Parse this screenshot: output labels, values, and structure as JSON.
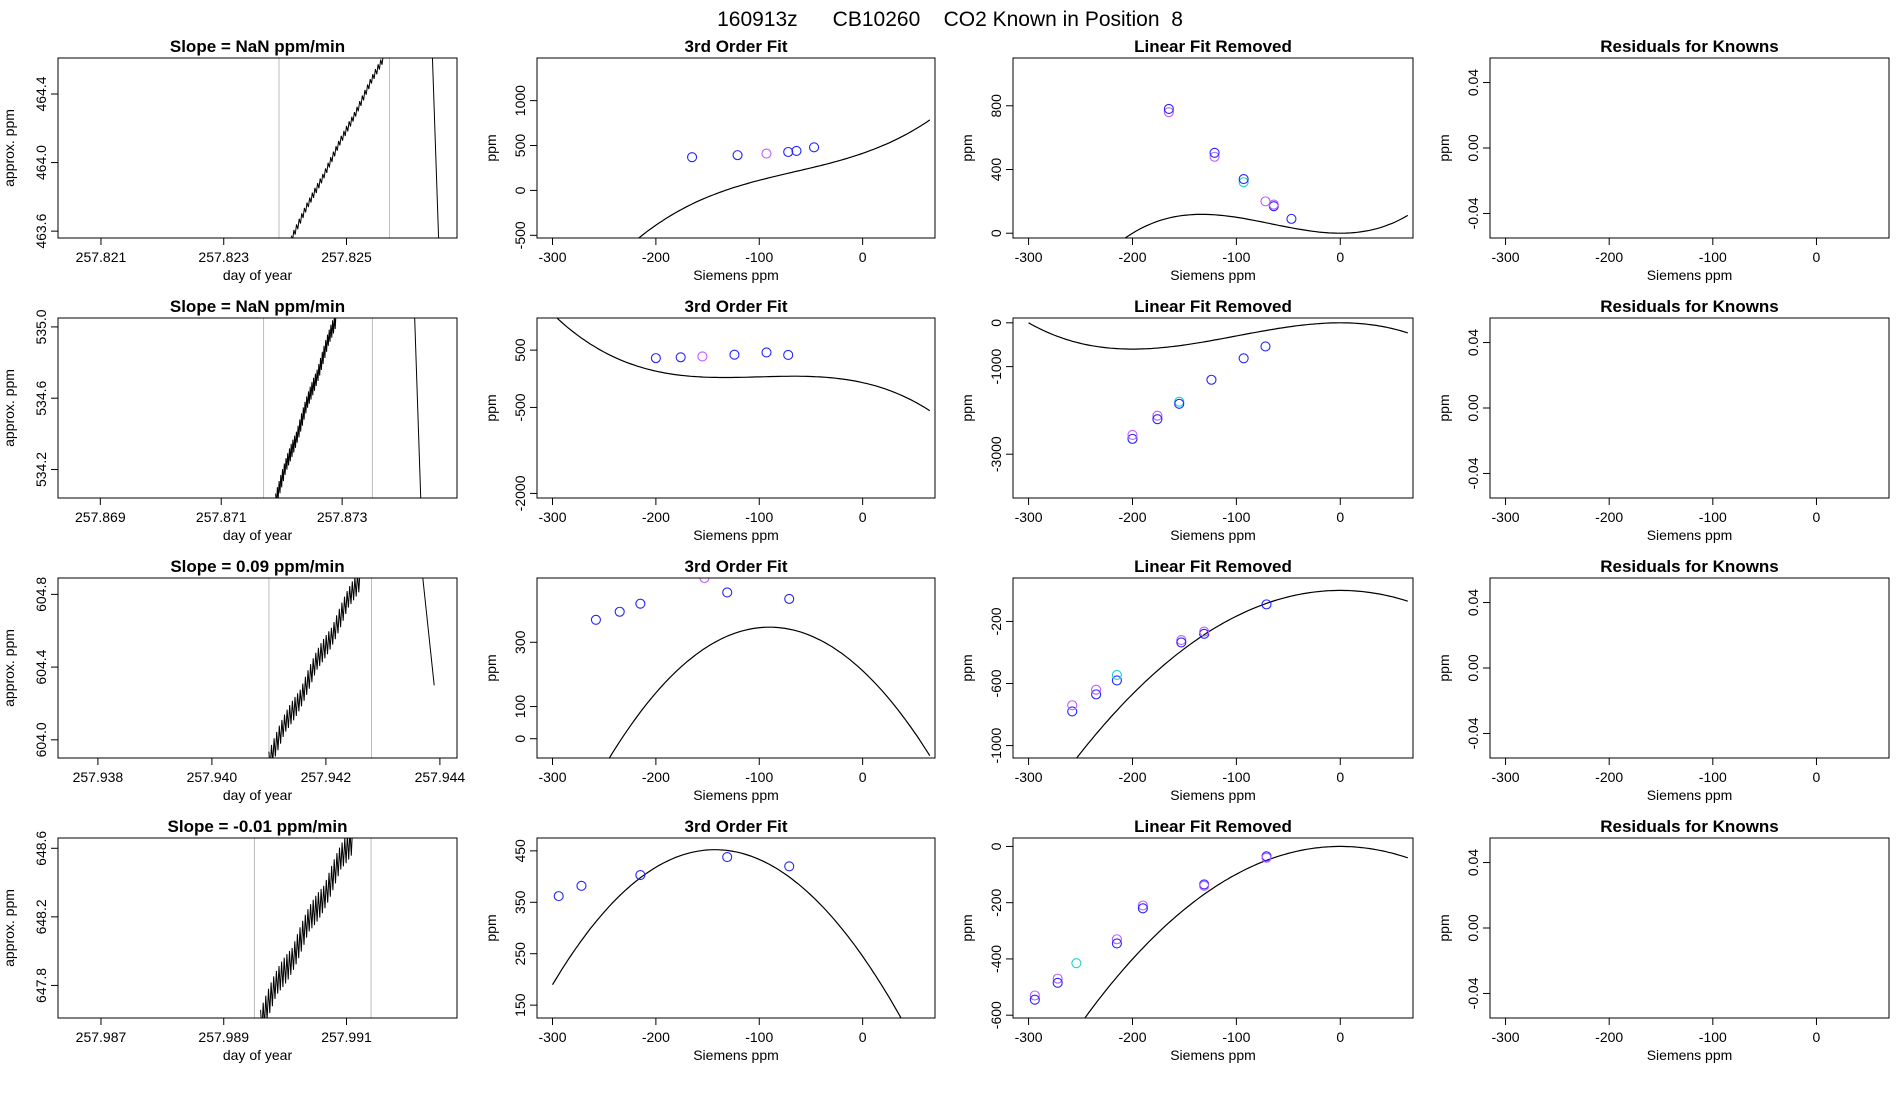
{
  "page": {
    "title": "160913z      CB10260    CO2 Known in Position  8"
  },
  "labels": {
    "day_of_year": "day of year",
    "approx_ppm": "approx. ppm",
    "siemens_ppm": "Siemens ppm",
    "ppm": "ppm"
  },
  "colors": {
    "axis": "#000000",
    "curve": "#000000",
    "point_blue": "#2323ff",
    "point_violet": "#c05cff",
    "point_cyan": "#1fd1d1",
    "vline": "#bdbdbd"
  },
  "chart_data": [
    {
      "row": 1,
      "type": "line",
      "title": "Slope =  NaN  ppm/min",
      "xlabel": "day of year",
      "ylabel": "approx. ppm",
      "xlim": [
        257.8203,
        257.8268
      ],
      "ylim": [
        463.56,
        464.61
      ],
      "xticks": [
        "257.821",
        "257.823",
        "257.825"
      ],
      "xtick_values": [
        257.821,
        257.823,
        257.825
      ],
      "yticks": [
        "463.6",
        "464.0",
        "464.4"
      ],
      "ytick_values": [
        463.6,
        464.0,
        464.4
      ],
      "vlines": [
        257.8239,
        257.8257
      ],
      "trace": {
        "x0": 257.8241,
        "x1": 257.8256,
        "y0": 463.56,
        "y1": 464.61,
        "jitter": 0.025
      },
      "drop": {
        "x0": 257.8264,
        "x1": 257.8265,
        "y0": 464.61,
        "y1": 463.56
      }
    },
    {
      "row": 1,
      "type": "scatter",
      "title": "3rd Order Fit",
      "xlabel": "Siemens ppm",
      "ylabel": "ppm",
      "xlim": [
        -315,
        70
      ],
      "ylim": [
        -530,
        1475
      ],
      "xticks": [
        "-300",
        "-200",
        "-100",
        "0"
      ],
      "xtick_values": [
        -300,
        -200,
        -100,
        0
      ],
      "yticks": [
        "-500",
        "0",
        "500",
        "1000"
      ],
      "ytick_values": [
        -500,
        0,
        500,
        1000
      ],
      "curve": {
        "kind": "cubic",
        "coef": [
          413.1,
          4.0,
          0.02,
          0.0001
        ],
        "x0": -300,
        "x1": 65
      },
      "points": [
        {
          "x": -165,
          "y": 370,
          "c": "point_blue"
        },
        {
          "x": -121,
          "y": 393,
          "c": "point_blue"
        },
        {
          "x": -93,
          "y": 410,
          "c": "point_violet"
        },
        {
          "x": -72,
          "y": 428,
          "c": "point_blue"
        },
        {
          "x": -64,
          "y": 440,
          "c": "point_blue"
        },
        {
          "x": -47,
          "y": 480,
          "c": "point_blue"
        }
      ]
    },
    {
      "row": 1,
      "type": "scatter",
      "title": "Linear Fit Removed",
      "xlabel": "Siemens ppm",
      "ylabel": "ppm",
      "xlim": [
        -315,
        70
      ],
      "ylim": [
        -30,
        1100
      ],
      "xticks": [
        "-300",
        "-200",
        "-100",
        "0"
      ],
      "xtick_values": [
        -300,
        -200,
        -100,
        0
      ],
      "yticks": [
        "0",
        "400",
        "800"
      ],
      "ytick_values": [
        0,
        400,
        800
      ],
      "curve": {
        "kind": "cubic",
        "coef": [
          0,
          0,
          0.02,
          0.0001
        ],
        "x0": -300,
        "x1": 65
      },
      "points": [
        {
          "x": -165,
          "y": 760,
          "c": "point_violet"
        },
        {
          "x": -165,
          "y": 780,
          "c": "point_blue"
        },
        {
          "x": -121,
          "y": 480,
          "c": "point_violet"
        },
        {
          "x": -121,
          "y": 505,
          "c": "point_blue"
        },
        {
          "x": -93,
          "y": 320,
          "c": "point_cyan"
        },
        {
          "x": -93,
          "y": 340,
          "c": "point_blue"
        },
        {
          "x": -72,
          "y": 200,
          "c": "point_violet"
        },
        {
          "x": -64,
          "y": 170,
          "c": "point_blue"
        },
        {
          "x": -64,
          "y": 180,
          "c": "point_violet"
        },
        {
          "x": -47,
          "y": 90,
          "c": "point_blue"
        }
      ]
    },
    {
      "row": 1,
      "type": "scatter",
      "title": "Residuals for Knowns",
      "xlabel": "Siemens ppm",
      "ylabel": "ppm",
      "xlim": [
        -315,
        70
      ],
      "ylim": [
        -0.055,
        0.055
      ],
      "xticks": [
        "-300",
        "-200",
        "-100",
        "0"
      ],
      "xtick_values": [
        -300,
        -200,
        -100,
        0
      ],
      "yticks": [
        "-0.04",
        "0.00",
        "0.04"
      ],
      "ytick_values": [
        -0.04,
        0.0,
        0.04
      ],
      "points": []
    },
    {
      "row": 2,
      "type": "line",
      "title": "Slope =  NaN  ppm/min",
      "xlabel": "day of year",
      "ylabel": "approx. ppm",
      "xlim": [
        257.8683,
        257.8749
      ],
      "ylim": [
        534.04,
        535.05
      ],
      "xticks": [
        "257.869",
        "257.871",
        "257.873"
      ],
      "xtick_values": [
        257.869,
        257.871,
        257.873
      ],
      "yticks": [
        "534.2",
        "534.6",
        "535.0"
      ],
      "ytick_values": [
        534.2,
        534.6,
        535.0
      ],
      "vlines": [
        257.8717,
        257.8735
      ],
      "trace": {
        "x0": 257.8719,
        "x1": 257.8729,
        "y0": 534.04,
        "y1": 535.05,
        "jitter": 0.05
      },
      "drop": {
        "x0": 257.8742,
        "x1": 257.8743,
        "y0": 535.05,
        "y1": 534.04
      }
    },
    {
      "row": 2,
      "type": "scatter",
      "title": "3rd Order Fit",
      "xlabel": "Siemens ppm",
      "ylabel": "ppm",
      "xlim": [
        -315,
        70
      ],
      "ylim": [
        -2080,
        1060
      ],
      "xticks": [
        "-300",
        "-200",
        "-100",
        "0"
      ],
      "xtick_values": [
        -300,
        -200,
        -100,
        0
      ],
      "yticks": [
        "-2000",
        "-500",
        "500"
      ],
      "ytick_values": [
        -2000,
        -500,
        500
      ],
      "curve": {
        "kind": "cubic",
        "coef": [
          -67,
          -4.0,
          -0.045,
          -0.00015
        ],
        "x0": -300,
        "x1": 65
      },
      "points": [
        {
          "x": -200,
          "y": 360,
          "c": "point_blue"
        },
        {
          "x": -176,
          "y": 375,
          "c": "point_blue"
        },
        {
          "x": -155,
          "y": 390,
          "c": "point_violet"
        },
        {
          "x": -124,
          "y": 420,
          "c": "point_blue"
        },
        {
          "x": -93,
          "y": 460,
          "c": "point_blue"
        },
        {
          "x": -72,
          "y": 415,
          "c": "point_blue"
        }
      ]
    },
    {
      "row": 2,
      "type": "scatter",
      "title": "Linear Fit Removed",
      "xlabel": "Siemens ppm",
      "ylabel": "ppm",
      "xlim": [
        -315,
        70
      ],
      "ylim": [
        -4000,
        110
      ],
      "xticks": [
        "-300",
        "-200",
        "-100",
        "0"
      ],
      "xtick_values": [
        -300,
        -200,
        -100,
        0
      ],
      "yticks": [
        "-3000",
        "-1000",
        "0"
      ],
      "ytick_values": [
        -3000,
        -1000,
        0
      ],
      "curve": {
        "kind": "cubic",
        "coef": [
          0,
          0,
          -0.045,
          -0.00015
        ],
        "x0": -300,
        "x1": 65
      },
      "points": [
        {
          "x": -200,
          "y": -2650,
          "c": "point_blue"
        },
        {
          "x": -200,
          "y": -2560,
          "c": "point_violet"
        },
        {
          "x": -176,
          "y": -2120,
          "c": "point_violet"
        },
        {
          "x": -176,
          "y": -2200,
          "c": "point_blue"
        },
        {
          "x": -155,
          "y": -1800,
          "c": "point_cyan"
        },
        {
          "x": -155,
          "y": -1850,
          "c": "point_blue"
        },
        {
          "x": -124,
          "y": -1300,
          "c": "point_blue"
        },
        {
          "x": -93,
          "y": -810,
          "c": "point_blue"
        },
        {
          "x": -72,
          "y": -540,
          "c": "point_blue"
        }
      ]
    },
    {
      "row": 2,
      "type": "scatter",
      "title": "Residuals for Knowns",
      "xlabel": "Siemens ppm",
      "ylabel": "ppm",
      "xlim": [
        -315,
        70
      ],
      "ylim": [
        -0.055,
        0.055
      ],
      "xticks": [
        "-300",
        "-200",
        "-100",
        "0"
      ],
      "xtick_values": [
        -300,
        -200,
        -100,
        0
      ],
      "yticks": [
        "-0.04",
        "0.00",
        "0.04"
      ],
      "ytick_values": [
        -0.04,
        0.0,
        0.04
      ],
      "points": []
    },
    {
      "row": 3,
      "type": "line",
      "title": "Slope =  0.09  ppm/min",
      "xlabel": "day of year",
      "ylabel": "approx. ppm",
      "xlim": [
        257.9373,
        257.9443
      ],
      "ylim": [
        603.9,
        604.89
      ],
      "xticks": [
        "257.938",
        "257.940",
        "257.942",
        "257.944"
      ],
      "xtick_values": [
        257.938,
        257.94,
        257.942,
        257.944
      ],
      "yticks": [
        "604.0",
        "604.4",
        "604.8"
      ],
      "ytick_values": [
        604.0,
        604.4,
        604.8
      ],
      "vlines": [
        257.941,
        257.9428
      ],
      "trace": {
        "x0": 257.941,
        "x1": 257.9426,
        "y0": 603.9,
        "y1": 604.89,
        "jitter": 0.07
      },
      "drop": {
        "x0": 257.9437,
        "x1": 257.9439,
        "y0": 604.89,
        "y1": 604.3
      }
    },
    {
      "row": 3,
      "type": "scatter",
      "title": "3rd Order Fit",
      "xlabel": "Siemens ppm",
      "ylabel": "ppm",
      "xlim": [
        -315,
        70
      ],
      "ylim": [
        -60,
        500
      ],
      "xticks": [
        "-300",
        "-200",
        "-100",
        "0"
      ],
      "xtick_values": [
        -300,
        -200,
        -100,
        0
      ],
      "yticks": [
        "0",
        "100",
        "300"
      ],
      "ytick_values": [
        0,
        100,
        300
      ],
      "curve": {
        "kind": "cubic",
        "coef": [
          211.5,
          -3.0,
          -0.0165,
          1.1e-06
        ],
        "x0": -300,
        "x1": 65
      },
      "points": [
        {
          "x": -258,
          "y": 370,
          "c": "point_blue"
        },
        {
          "x": -235,
          "y": 395,
          "c": "point_blue"
        },
        {
          "x": -215,
          "y": 420,
          "c": "point_blue"
        },
        {
          "x": -153,
          "y": 500,
          "c": "point_violet"
        },
        {
          "x": -131,
          "y": 455,
          "c": "point_blue"
        },
        {
          "x": -71,
          "y": 435,
          "c": "point_blue"
        }
      ]
    },
    {
      "row": 3,
      "type": "scatter",
      "title": "Linear Fit Removed",
      "xlabel": "Siemens ppm",
      "ylabel": "ppm",
      "xlim": [
        -315,
        70
      ],
      "ylim": [
        -1080,
        80
      ],
      "xticks": [
        "-300",
        "-200",
        "-100",
        "0"
      ],
      "xtick_values": [
        -300,
        -200,
        -100,
        0
      ],
      "yticks": [
        "-1000",
        "-600",
        "-200"
      ],
      "ytick_values": [
        -1000,
        -600,
        -200
      ],
      "curve": {
        "kind": "cubic",
        "coef": [
          0,
          0,
          -0.0165,
          1.1e-06
        ],
        "x0": -300,
        "x1": 65
      },
      "points": [
        {
          "x": -258,
          "y": -780,
          "c": "point_blue"
        },
        {
          "x": -258,
          "y": -740,
          "c": "point_violet"
        },
        {
          "x": -235,
          "y": -670,
          "c": "point_blue"
        },
        {
          "x": -235,
          "y": -640,
          "c": "point_violet"
        },
        {
          "x": -215,
          "y": -580,
          "c": "point_blue"
        },
        {
          "x": -215,
          "y": -545,
          "c": "point_cyan"
        },
        {
          "x": -153,
          "y": -320,
          "c": "point_violet"
        },
        {
          "x": -153,
          "y": -335,
          "c": "point_blue"
        },
        {
          "x": -131,
          "y": -280,
          "c": "point_blue"
        },
        {
          "x": -131,
          "y": -265,
          "c": "point_violet"
        },
        {
          "x": -71,
          "y": -90,
          "c": "point_blue"
        }
      ]
    },
    {
      "row": 3,
      "type": "scatter",
      "title": "Residuals for Knowns",
      "xlabel": "Siemens ppm",
      "ylabel": "ppm",
      "xlim": [
        -315,
        70
      ],
      "ylim": [
        -0.055,
        0.055
      ],
      "xticks": [
        "-300",
        "-200",
        "-100",
        "0"
      ],
      "xtick_values": [
        -300,
        -200,
        -100,
        0
      ],
      "yticks": [
        "-0.04",
        "0.00",
        "0.04"
      ],
      "ytick_values": [
        -0.04,
        0.0,
        0.04
      ],
      "points": []
    },
    {
      "row": 4,
      "type": "line",
      "title": "Slope =  -0.01  ppm/min",
      "xlabel": "day of year",
      "ylabel": "approx. ppm",
      "xlim": [
        257.9863,
        257.9928
      ],
      "ylim": [
        647.61,
        648.66
      ],
      "xticks": [
        "257.987",
        "257.989",
        "257.991"
      ],
      "xtick_values": [
        257.987,
        257.989,
        257.991
      ],
      "yticks": [
        "647.8",
        "648.2",
        "648.6"
      ],
      "ytick_values": [
        647.8,
        648.2,
        648.6
      ],
      "vlines": [
        257.9895,
        257.9914
      ],
      "trace": {
        "x0": 257.9896,
        "x1": 257.9911,
        "y0": 647.61,
        "y1": 648.66,
        "jitter": 0.09
      }
    },
    {
      "row": 4,
      "type": "scatter",
      "title": "3rd Order Fit",
      "xlabel": "Siemens ppm",
      "ylabel": "ppm",
      "xlim": [
        -315,
        70
      ],
      "ylim": [
        125,
        475
      ],
      "xticks": [
        "-300",
        "-200",
        "-100",
        "0"
      ],
      "xtick_values": [
        -300,
        -200,
        -100,
        0
      ],
      "yticks": [
        "150",
        "250",
        "350",
        "450"
      ],
      "ytick_values": [
        150,
        250,
        350,
        450
      ],
      "curve": {
        "kind": "cubic",
        "coef": [
          244.9,
          -2.87,
          -0.0097,
          1.6e-06
        ],
        "x0": -300,
        "x1": 65
      },
      "points": [
        {
          "x": -294,
          "y": 362,
          "c": "point_blue"
        },
        {
          "x": -272,
          "y": 382,
          "c": "point_blue"
        },
        {
          "x": -215,
          "y": 403,
          "c": "point_blue"
        },
        {
          "x": -131,
          "y": 438,
          "c": "point_blue"
        },
        {
          "x": -71,
          "y": 420,
          "c": "point_blue"
        }
      ]
    },
    {
      "row": 4,
      "type": "scatter",
      "title": "Linear Fit Removed",
      "xlabel": "Siemens ppm",
      "ylabel": "ppm",
      "xlim": [
        -315,
        70
      ],
      "ylim": [
        -610,
        30
      ],
      "xticks": [
        "-300",
        "-200",
        "-100",
        "0"
      ],
      "xtick_values": [
        -300,
        -200,
        -100,
        0
      ],
      "yticks": [
        "-600",
        "-400",
        "-200",
        "0"
      ],
      "ytick_values": [
        -600,
        -400,
        -200,
        0
      ],
      "curve": {
        "kind": "cubic",
        "coef": [
          0,
          0,
          -0.0097,
          1.6e-06
        ],
        "x0": -300,
        "x1": 65
      },
      "points": [
        {
          "x": -294,
          "y": -530,
          "c": "point_violet"
        },
        {
          "x": -294,
          "y": -545,
          "c": "point_blue"
        },
        {
          "x": -272,
          "y": -470,
          "c": "point_violet"
        },
        {
          "x": -272,
          "y": -485,
          "c": "point_blue"
        },
        {
          "x": -254,
          "y": -415,
          "c": "point_cyan"
        },
        {
          "x": -215,
          "y": -330,
          "c": "point_violet"
        },
        {
          "x": -215,
          "y": -345,
          "c": "point_blue"
        },
        {
          "x": -190,
          "y": -210,
          "c": "point_violet"
        },
        {
          "x": -190,
          "y": -220,
          "c": "point_blue"
        },
        {
          "x": -131,
          "y": -135,
          "c": "point_blue"
        },
        {
          "x": -131,
          "y": -140,
          "c": "point_violet"
        },
        {
          "x": -71,
          "y": -35,
          "c": "point_blue"
        },
        {
          "x": -71,
          "y": -40,
          "c": "point_violet"
        }
      ]
    },
    {
      "row": 4,
      "type": "scatter",
      "title": "Residuals for Knowns",
      "xlabel": "Siemens ppm",
      "ylabel": "ppm",
      "xlim": [
        -315,
        70
      ],
      "ylim": [
        -0.055,
        0.055
      ],
      "xticks": [
        "-300",
        "-200",
        "-100",
        "0"
      ],
      "xtick_values": [
        -300,
        -200,
        -100,
        0
      ],
      "yticks": [
        "-0.04",
        "0.00",
        "0.04"
      ],
      "ytick_values": [
        -0.04,
        0.0,
        0.04
      ],
      "points": []
    }
  ]
}
